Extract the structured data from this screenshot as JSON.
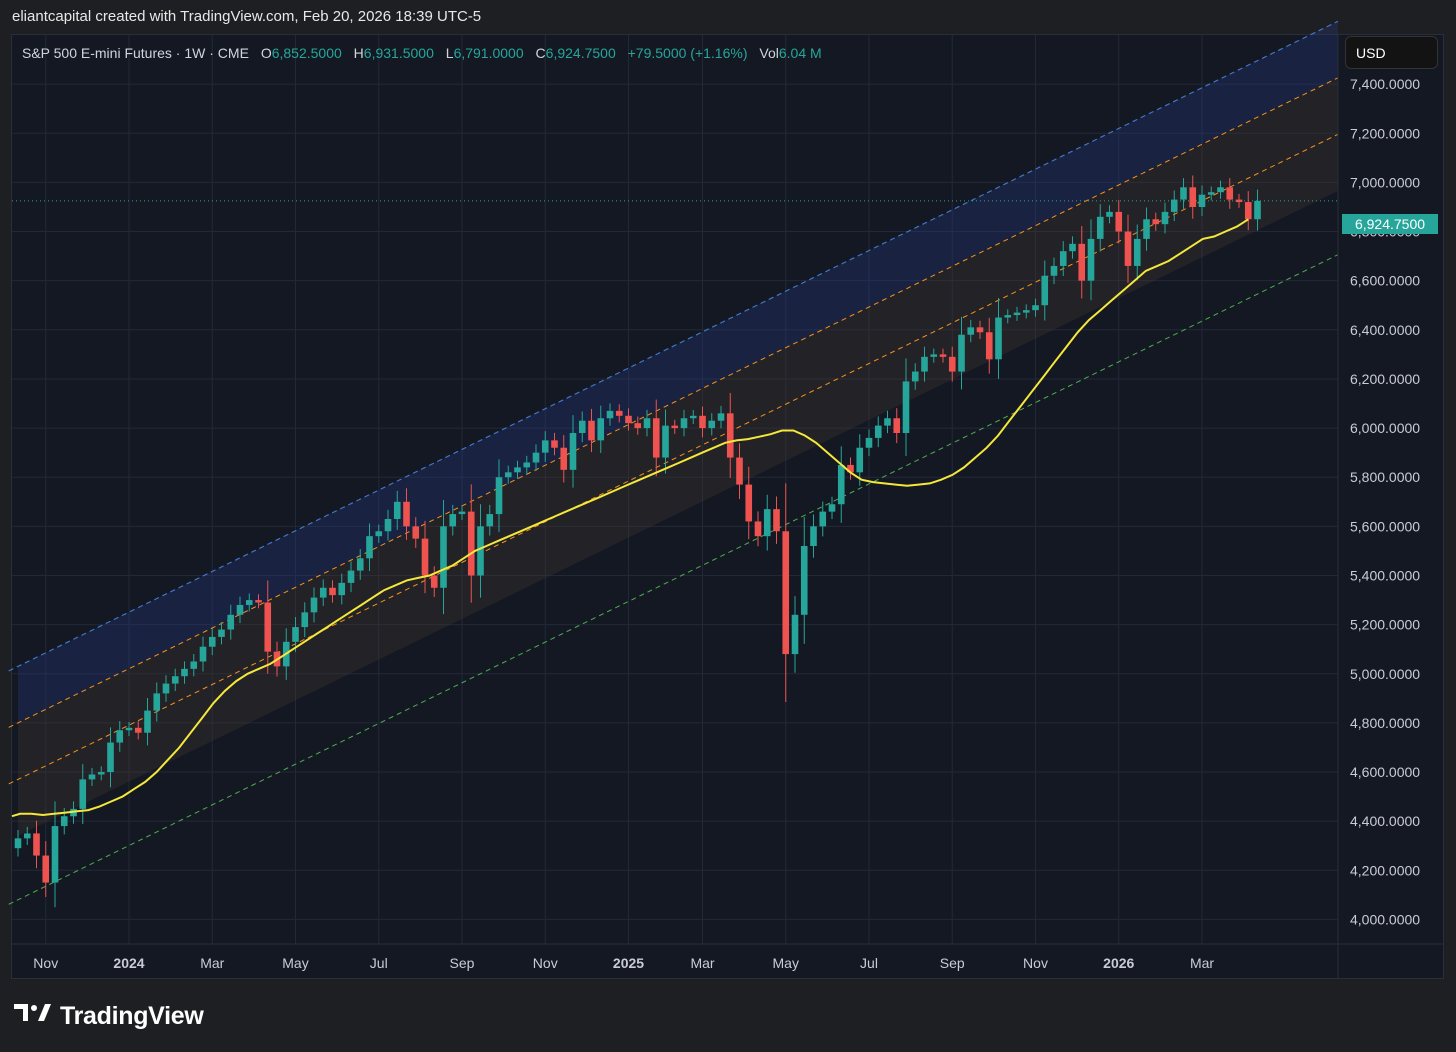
{
  "header": {
    "attribution": "eliantcapital created with TradingView.com, Feb 20, 2026 18:39 UTC-5"
  },
  "legend": {
    "symbol": "S&P 500 E-mini Futures · 1W · CME",
    "open_label": "O",
    "open": "6,852.5000",
    "high_label": "H",
    "high": "6,931.5000",
    "low_label": "L",
    "low": "6,791.0000",
    "close_label": "C",
    "close": "6,924.7500",
    "change": "+79.5000 (+1.16%)",
    "vol_label": "Vol",
    "vol": "6.04 M"
  },
  "currency_button": "USD",
  "last_price": "6,924.7500",
  "footer": {
    "brand": "TradingView"
  },
  "colors": {
    "up": "#26a69a",
    "down": "#ef5350",
    "ma": "#f5e83a",
    "bg": "#141823"
  },
  "chart_data": {
    "type": "candlestick",
    "interval": "1W",
    "y_tick_labels": [
      "7,400.0000",
      "7,200.0000",
      "7,000.0000",
      "6,800.0000",
      "6,600.0000",
      "6,400.0000",
      "6,200.0000",
      "6,000.0000",
      "5,800.0000",
      "5,600.0000",
      "5,400.0000",
      "5,200.0000",
      "5,000.0000",
      "4,800.0000",
      "4,600.0000",
      "4,400.0000",
      "4,200.0000",
      "4,000.0000"
    ],
    "y_ticks": [
      7400,
      7200,
      7000,
      6800,
      6600,
      6400,
      6200,
      6000,
      5800,
      5600,
      5400,
      5200,
      5000,
      4800,
      4600,
      4400,
      4200,
      4000
    ],
    "ylim": [
      3900,
      7600
    ],
    "x_tick_labels": [
      {
        "label": "Nov",
        "bold": false
      },
      {
        "label": "2024",
        "bold": true
      },
      {
        "label": "Mar",
        "bold": false
      },
      {
        "label": "May",
        "bold": false
      },
      {
        "label": "Jul",
        "bold": false
      },
      {
        "label": "Sep",
        "bold": false
      },
      {
        "label": "Nov",
        "bold": false
      },
      {
        "label": "2025",
        "bold": true
      },
      {
        "label": "Mar",
        "bold": false
      },
      {
        "label": "May",
        "bold": false
      },
      {
        "label": "Jul",
        "bold": false
      },
      {
        "label": "Sep",
        "bold": false
      },
      {
        "label": "Nov",
        "bold": false
      },
      {
        "label": "2026",
        "bold": true
      },
      {
        "label": "Mar",
        "bold": false
      }
    ],
    "x_tick_weeks": [
      3,
      12,
      21,
      30,
      39,
      48,
      57,
      66,
      74,
      83,
      92,
      101,
      110,
      119,
      128
    ],
    "close_path": [
      4330,
      4350,
      4260,
      4150,
      4380,
      4420,
      4450,
      4570,
      4590,
      4600,
      4720,
      4770,
      4780,
      4760,
      4850,
      4920,
      4960,
      4990,
      5020,
      5050,
      5110,
      5150,
      5180,
      5240,
      5280,
      5300,
      5290,
      5090,
      5030,
      5130,
      5190,
      5250,
      5310,
      5350,
      5320,
      5370,
      5420,
      5470,
      5560,
      5580,
      5630,
      5700,
      5600,
      5550,
      5400,
      5350,
      5600,
      5650,
      5660,
      5400,
      5600,
      5650,
      5800,
      5820,
      5840,
      5860,
      5900,
      5950,
      5920,
      5830,
      5980,
      6030,
      5950,
      6040,
      6070,
      6050,
      6020,
      6000,
      6040,
      5880,
      6010,
      6000,
      6040,
      6050,
      6000,
      6030,
      6060,
      5880,
      5770,
      5620,
      5560,
      5670,
      5580,
      5080,
      5240,
      5520,
      5600,
      5660,
      5690,
      5850,
      5820,
      5920,
      5960,
      6010,
      6040,
      5980,
      6190,
      6230,
      6290,
      6300,
      6290,
      6230,
      6380,
      6410,
      6390,
      6280,
      6450,
      6460,
      6470,
      6480,
      6500,
      6620,
      6660,
      6720,
      6750,
      6600,
      6770,
      6860,
      6880,
      6800,
      6660,
      6770,
      6850,
      6830,
      6880,
      6930,
      6980,
      6900,
      6950,
      6960,
      6980,
      6930,
      6920,
      6850,
      6925
    ],
    "ma_path": [
      4420,
      4430,
      4430,
      4425,
      4430,
      4435,
      4440,
      4445,
      4460,
      4480,
      4500,
      4530,
      4560,
      4600,
      4650,
      4700,
      4760,
      4820,
      4880,
      4930,
      4970,
      5000,
      5020,
      5040,
      5070,
      5100,
      5130,
      5160,
      5190,
      5220,
      5250,
      5280,
      5310,
      5340,
      5360,
      5380,
      5390,
      5400,
      5420,
      5440,
      5470,
      5500,
      5520,
      5540,
      5560,
      5580,
      5600,
      5620,
      5640,
      5660,
      5680,
      5700,
      5720,
      5740,
      5760,
      5780,
      5800,
      5820,
      5840,
      5860,
      5880,
      5900,
      5920,
      5940,
      5950,
      5955,
      5965,
      5975,
      5990,
      5990,
      5970,
      5940,
      5900,
      5860,
      5820,
      5790,
      5780,
      5775,
      5770,
      5765,
      5770,
      5775,
      5790,
      5810,
      5840,
      5880,
      5920,
      5970,
      6030,
      6090,
      6150,
      6210,
      6270,
      6330,
      6390,
      6440,
      6480,
      6520,
      6560,
      6600,
      6640,
      6660,
      6680,
      6710,
      6740,
      6770,
      6780,
      6800,
      6820,
      6850
    ],
    "channel_mid_upper": {
      "start": 4800,
      "slope": 18.4
    },
    "channel_mid_lower": {
      "start": 4570,
      "slope": 18.4
    },
    "channel_inner_lower": {
      "start": 4340,
      "slope": 18.4
    },
    "channel_outer_upper": {
      "start": 5030,
      "slope": 18.4
    },
    "channel_outer_lower": {
      "start": 4080,
      "slope": 18.4
    }
  }
}
